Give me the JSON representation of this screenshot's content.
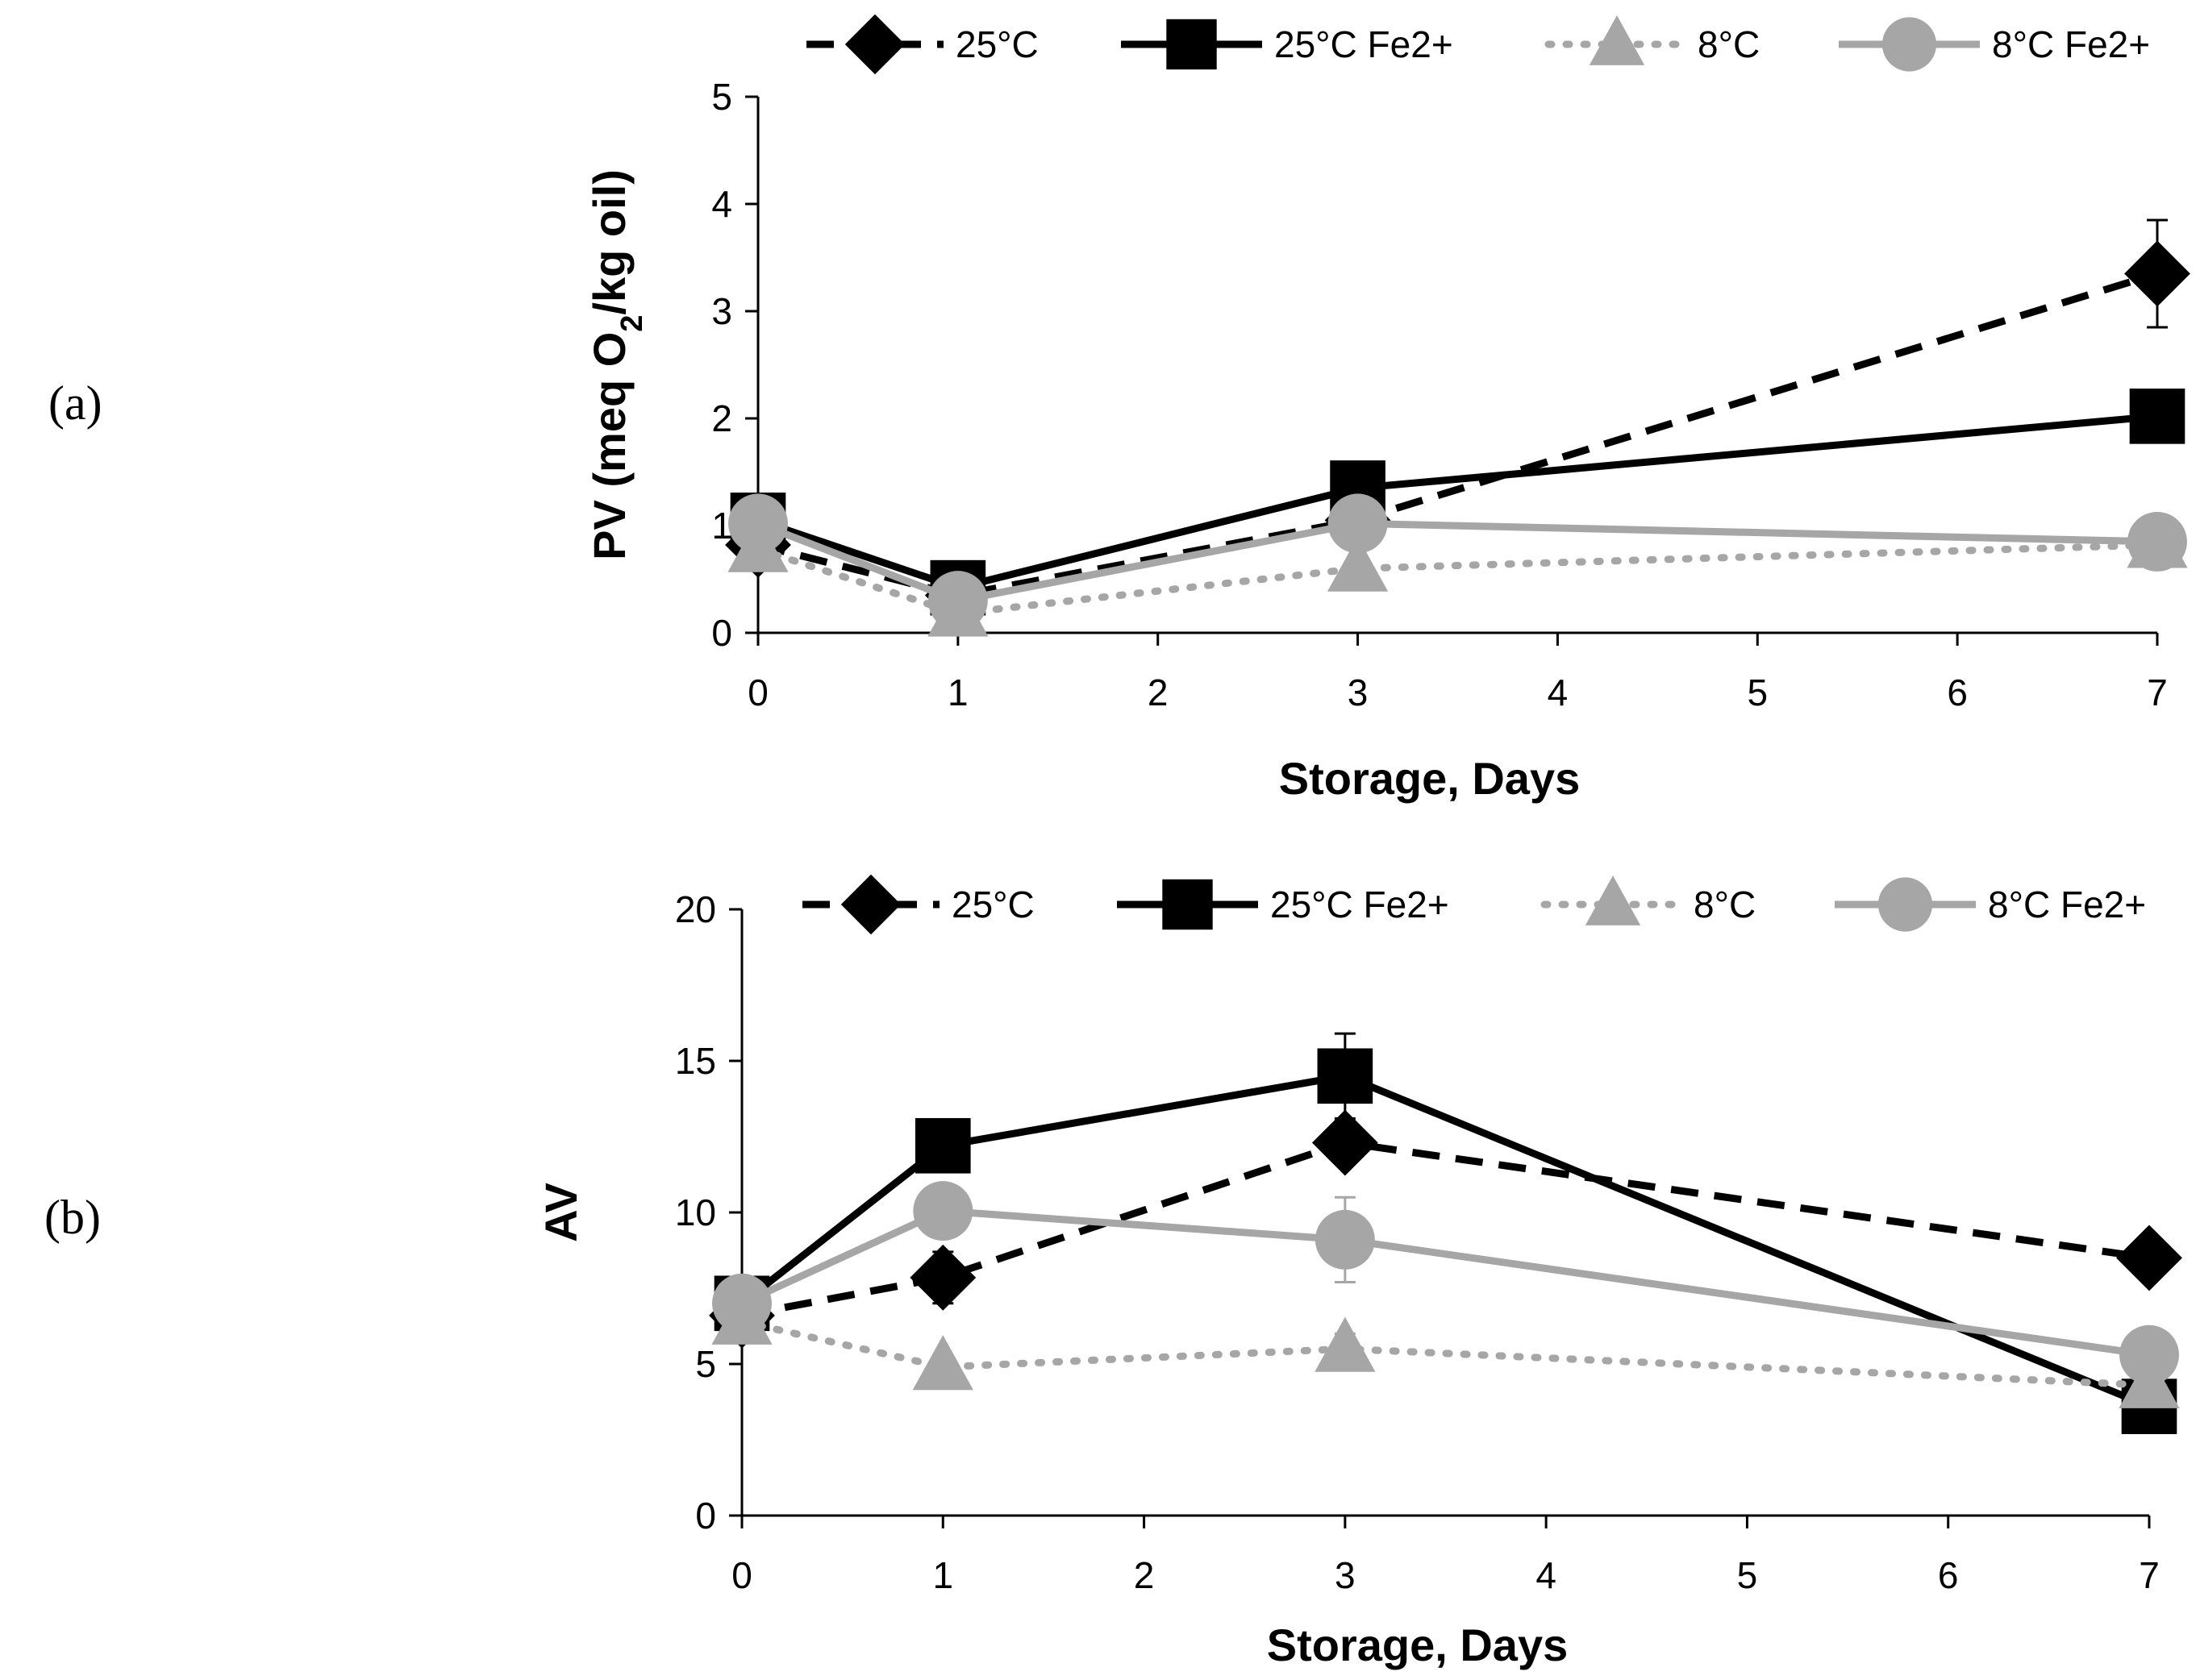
{
  "chart_data": [
    {
      "type": "line",
      "panel_label": "(a)",
      "ylabel_main": "PV (meq O",
      "ylabel_sub": "2",
      "ylabel_tail": "/kg oil)",
      "xlabel": "Storage, Days",
      "ylim": [
        0,
        5
      ],
      "yticks": [
        0,
        1,
        2,
        3,
        4,
        5
      ],
      "xlim": [
        0,
        7
      ],
      "xticks": [
        0,
        1,
        2,
        3,
        4,
        5,
        6,
        7
      ],
      "x": [
        0,
        1,
        3,
        7
      ],
      "legend_position": "top",
      "series": [
        {
          "name": "25°C",
          "values": [
            0.82,
            0.35,
            1.05,
            3.35
          ],
          "errors": [
            0.08,
            0.05,
            0.1,
            0.5
          ],
          "color": "#000000",
          "style": "dashed",
          "marker": "diamond"
        },
        {
          "name": "25°C Fe2+",
          "values": [
            1.05,
            0.42,
            1.35,
            2.02
          ],
          "errors": [
            0.06,
            0.05,
            0.22,
            0.15
          ],
          "color": "#000000",
          "style": "solid",
          "marker": "square"
        },
        {
          "name": "8°C",
          "values": [
            0.78,
            0.18,
            0.6,
            0.82
          ],
          "errors": [
            0.05,
            0.05,
            0.08,
            0.06
          ],
          "color": "#a6a6a6",
          "style": "dotted",
          "marker": "triangle"
        },
        {
          "name": "8°C Fe2+",
          "values": [
            1.02,
            0.3,
            1.02,
            0.85
          ],
          "errors": [
            0.06,
            0.05,
            0.08,
            0.06
          ],
          "color": "#a6a6a6",
          "style": "solid",
          "marker": "circle"
        }
      ]
    },
    {
      "type": "line",
      "panel_label": "(b)",
      "ylabel_main": "AV",
      "ylabel_sub": "",
      "ylabel_tail": "",
      "xlabel": "Storage, Days",
      "ylim": [
        0,
        20
      ],
      "yticks": [
        0,
        5,
        10,
        15,
        20
      ],
      "xlim": [
        0,
        7
      ],
      "xticks": [
        0,
        1,
        2,
        3,
        4,
        5,
        6,
        7
      ],
      "x": [
        0,
        1,
        3,
        7
      ],
      "legend_position": "top",
      "series": [
        {
          "name": "25°C",
          "values": [
            6.6,
            7.85,
            12.3,
            8.5
          ],
          "errors": [
            0.2,
            0.85,
            0.6,
            0.2
          ],
          "color": "#000000",
          "style": "dashed",
          "marker": "diamond"
        },
        {
          "name": "25°C Fe2+",
          "values": [
            7.0,
            12.2,
            14.5,
            3.6
          ],
          "errors": [
            0.2,
            0.3,
            1.4,
            0.2
          ],
          "color": "#000000",
          "style": "solid",
          "marker": "square"
        },
        {
          "name": "8°C",
          "values": [
            6.4,
            4.9,
            5.5,
            4.3
          ],
          "errors": [
            0.2,
            0.4,
            0.5,
            0.2
          ],
          "color": "#a6a6a6",
          "style": "dotted",
          "marker": "triangle"
        },
        {
          "name": "8°C Fe2+",
          "values": [
            7.0,
            10.05,
            9.1,
            5.3
          ],
          "errors": [
            0.2,
            0.7,
            1.4,
            0.2
          ],
          "color": "#a6a6a6",
          "style": "solid",
          "marker": "circle"
        }
      ]
    }
  ]
}
